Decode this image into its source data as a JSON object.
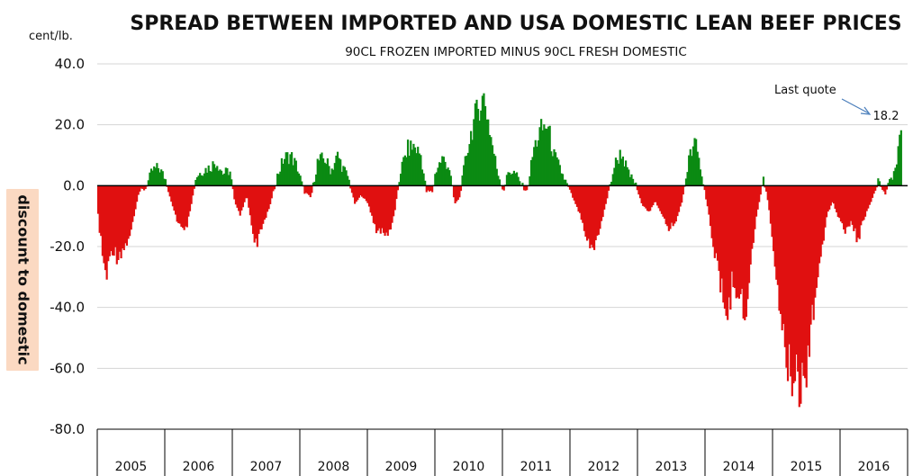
{
  "chart_data": {
    "type": "bar",
    "title": "SPREAD BETWEEN IMPORTED AND USA DOMESTIC LEAN BEEF PRICES",
    "subtitle": "90CL FROZEN IMPORTED MINUS 90CL FRESH DOMESTIC",
    "unit_label": "cent/lb.",
    "ylabel": "discount to domestic",
    "ylim": [
      -80,
      40
    ],
    "yticks": [
      "40.0",
      "20.0",
      "0.0",
      "-20.0",
      "-40.0",
      "-60.0",
      "-80.0"
    ],
    "ytick_values": [
      40,
      20,
      0,
      -20,
      -40,
      -60,
      -80
    ],
    "x_categories": [
      "2005",
      "2006",
      "2007",
      "2008",
      "2009",
      "2010",
      "2011",
      "2012",
      "2013",
      "2014",
      "2015",
      "2016"
    ],
    "grid": true,
    "positive_color": "#0b8a12",
    "negative_color": "#e01010",
    "annotation": {
      "text": "Last quote",
      "value_label": "18.2",
      "value": 18.2
    },
    "anchors": [
      [
        2005.0,
        -10
      ],
      [
        2005.08,
        -26
      ],
      [
        2005.13,
        -30
      ],
      [
        2005.2,
        -20
      ],
      [
        2005.28,
        -23
      ],
      [
        2005.4,
        -20
      ],
      [
        2005.5,
        -14
      ],
      [
        2005.6,
        -2
      ],
      [
        2005.7,
        -1
      ],
      [
        2005.8,
        5
      ],
      [
        2005.9,
        6
      ],
      [
        2006.0,
        2
      ],
      [
        2006.08,
        -5
      ],
      [
        2006.18,
        -12
      ],
      [
        2006.28,
        -16
      ],
      [
        2006.35,
        -10
      ],
      [
        2006.45,
        3
      ],
      [
        2006.55,
        5
      ],
      [
        2006.65,
        6
      ],
      [
        2006.75,
        8
      ],
      [
        2006.85,
        4
      ],
      [
        2006.95,
        5
      ],
      [
        2007.02,
        -5
      ],
      [
        2007.1,
        -10
      ],
      [
        2007.2,
        -3
      ],
      [
        2007.28,
        -14
      ],
      [
        2007.35,
        -20
      ],
      [
        2007.45,
        -12
      ],
      [
        2007.55,
        -6
      ],
      [
        2007.65,
        3
      ],
      [
        2007.75,
        9
      ],
      [
        2007.85,
        10
      ],
      [
        2007.95,
        6
      ],
      [
        2008.05,
        -2
      ],
      [
        2008.15,
        -4
      ],
      [
        2008.25,
        8
      ],
      [
        2008.35,
        9
      ],
      [
        2008.45,
        5
      ],
      [
        2008.55,
        10
      ],
      [
        2008.62,
        6
      ],
      [
        2008.7,
        3
      ],
      [
        2008.8,
        -6
      ],
      [
        2008.9,
        -3
      ],
      [
        2009.0,
        -6
      ],
      [
        2009.1,
        -14
      ],
      [
        2009.2,
        -15
      ],
      [
        2009.28,
        -17
      ],
      [
        2009.38,
        -10
      ],
      [
        2009.48,
        5
      ],
      [
        2009.58,
        12
      ],
      [
        2009.68,
        13
      ],
      [
        2009.78,
        10
      ],
      [
        2009.86,
        -2
      ],
      [
        2009.95,
        -2
      ],
      [
        2010.0,
        5
      ],
      [
        2010.1,
        9
      ],
      [
        2010.2,
        6
      ],
      [
        2010.28,
        -6
      ],
      [
        2010.35,
        -4
      ],
      [
        2010.45,
        10
      ],
      [
        2010.55,
        20
      ],
      [
        2010.65,
        27
      ],
      [
        2010.72,
        29
      ],
      [
        2010.8,
        18
      ],
      [
        2010.9,
        6
      ],
      [
        2011.0,
        -2
      ],
      [
        2011.08,
        5
      ],
      [
        2011.18,
        4
      ],
      [
        2011.25,
        1
      ],
      [
        2011.35,
        -2
      ],
      [
        2011.45,
        12
      ],
      [
        2011.55,
        18
      ],
      [
        2011.65,
        20
      ],
      [
        2011.75,
        10
      ],
      [
        2011.85,
        5
      ],
      [
        2011.95,
        0
      ],
      [
        2012.05,
        -5
      ],
      [
        2012.15,
        -10
      ],
      [
        2012.25,
        -18
      ],
      [
        2012.35,
        -21
      ],
      [
        2012.45,
        -12
      ],
      [
        2012.55,
        -3
      ],
      [
        2012.65,
        7
      ],
      [
        2012.75,
        11
      ],
      [
        2012.85,
        4
      ],
      [
        2012.95,
        1
      ],
      [
        2013.05,
        -6
      ],
      [
        2013.15,
        -9
      ],
      [
        2013.25,
        -5
      ],
      [
        2013.35,
        -10
      ],
      [
        2013.45,
        -14
      ],
      [
        2013.55,
        -12
      ],
      [
        2013.65,
        -5
      ],
      [
        2013.75,
        9
      ],
      [
        2013.85,
        14
      ],
      [
        2013.95,
        2
      ],
      [
        2014.05,
        -10
      ],
      [
        2014.15,
        -25
      ],
      [
        2014.25,
        -37
      ],
      [
        2014.33,
        -42
      ],
      [
        2014.4,
        -30
      ],
      [
        2014.5,
        -35
      ],
      [
        2014.58,
        -44
      ],
      [
        2014.65,
        -28
      ],
      [
        2014.75,
        -10
      ],
      [
        2014.85,
        2
      ],
      [
        2014.92,
        -5
      ],
      [
        2015.0,
        -20
      ],
      [
        2015.1,
        -40
      ],
      [
        2015.18,
        -55
      ],
      [
        2015.25,
        -63
      ],
      [
        2015.33,
        -58
      ],
      [
        2015.4,
        -66
      ],
      [
        2015.48,
        -60
      ],
      [
        2015.55,
        -45
      ],
      [
        2015.62,
        -35
      ],
      [
        2015.7,
        -25
      ],
      [
        2015.78,
        -10
      ],
      [
        2015.88,
        -5
      ],
      [
        2015.95,
        -10
      ],
      [
        2016.05,
        -15
      ],
      [
        2016.15,
        -12
      ],
      [
        2016.25,
        -18
      ],
      [
        2016.35,
        -10
      ],
      [
        2016.45,
        -5
      ],
      [
        2016.55,
        2
      ],
      [
        2016.65,
        -3
      ],
      [
        2016.75,
        3
      ],
      [
        2016.82,
        6
      ],
      [
        2016.87,
        17
      ],
      [
        2016.89,
        18.2
      ]
    ]
  }
}
